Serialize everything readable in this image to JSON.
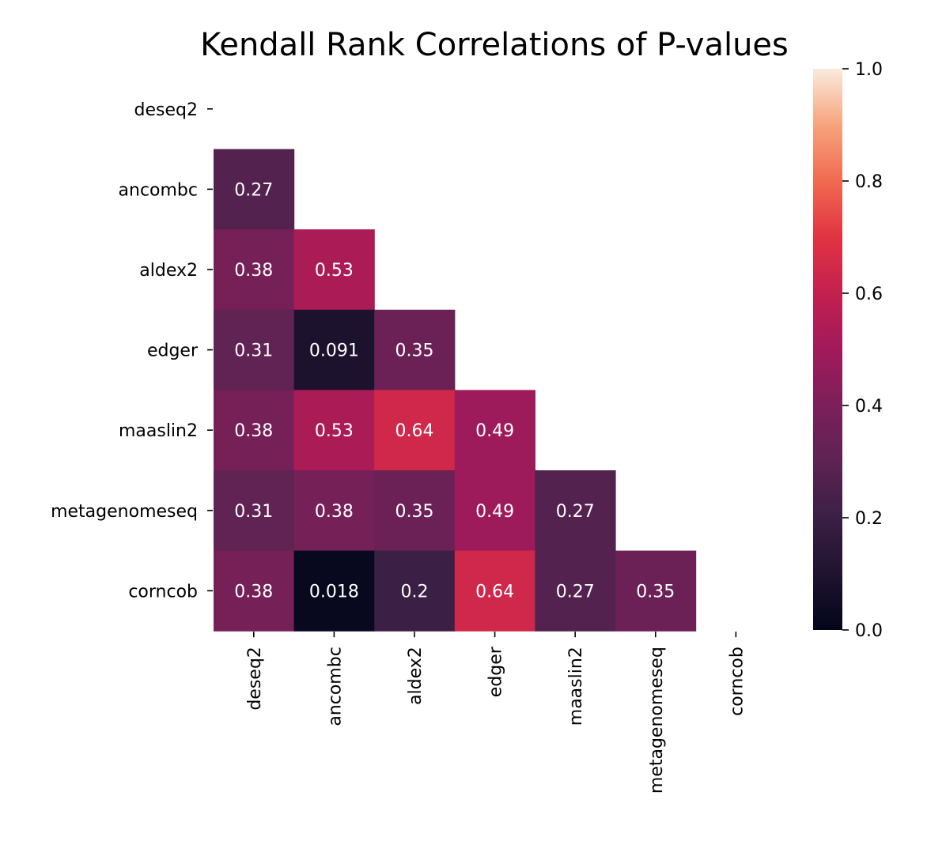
{
  "chart_data": {
    "type": "heatmap",
    "title": "Kendall Rank Correlations of P-values",
    "row_labels": [
      "deseq2",
      "ancombc",
      "aldex2",
      "edger",
      "maaslin2",
      "metagenomeseq",
      "corncob"
    ],
    "col_labels": [
      "deseq2",
      "ancombc",
      "aldex2",
      "edger",
      "maaslin2",
      "metagenomeseq",
      "corncob"
    ],
    "values": [
      [
        null,
        null,
        null,
        null,
        null,
        null,
        null
      ],
      [
        0.27,
        null,
        null,
        null,
        null,
        null,
        null
      ],
      [
        0.38,
        0.53,
        null,
        null,
        null,
        null,
        null
      ],
      [
        0.31,
        0.091,
        0.35,
        null,
        null,
        null,
        null
      ],
      [
        0.38,
        0.53,
        0.64,
        0.49,
        null,
        null,
        null
      ],
      [
        0.31,
        0.38,
        0.35,
        0.49,
        0.27,
        null,
        null
      ],
      [
        0.38,
        0.018,
        0.2,
        0.64,
        0.27,
        0.35,
        null
      ]
    ],
    "mask": "upper-triangle-including-diagonal",
    "annotations": true,
    "colormap": "rocket",
    "colorbar": {
      "range": [
        0.0,
        1.0
      ],
      "ticks": [
        "0.0",
        "0.2",
        "0.4",
        "0.6",
        "0.8",
        "1.0"
      ],
      "position": "right"
    }
  }
}
